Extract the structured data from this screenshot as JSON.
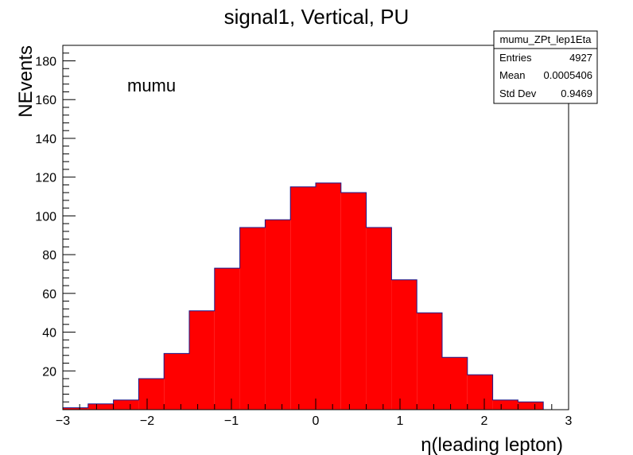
{
  "chart_data": {
    "type": "bar",
    "title": "signal1, Vertical, PU",
    "xlabel": "η(leading lepton)",
    "ylabel": "NEvents",
    "annotation": "mumu",
    "xlim": [
      -3,
      3
    ],
    "ylim": [
      0,
      188
    ],
    "xticks": [
      -3,
      -2,
      -1,
      0,
      1,
      2,
      3
    ],
    "xtick_labels": [
      "−3",
      "−2",
      "−1",
      "0",
      "1",
      "2",
      "3"
    ],
    "yticks": [
      20,
      40,
      60,
      80,
      100,
      120,
      140,
      160,
      180
    ],
    "ytick_labels": [
      "20",
      "40",
      "60",
      "80",
      "100",
      "120",
      "140",
      "160",
      "180"
    ],
    "bin_edges": [
      -3.0,
      -2.7,
      -2.4,
      -2.1,
      -1.8,
      -1.5,
      -1.2,
      -0.9,
      -0.6,
      -0.3,
      0.0,
      0.3,
      0.6,
      0.9,
      1.2,
      1.5,
      1.8,
      2.1,
      2.4,
      2.7,
      3.0
    ],
    "values": [
      1,
      3,
      5,
      16,
      29,
      51,
      73,
      94,
      98,
      115,
      117,
      112,
      94,
      67,
      50,
      27,
      18,
      5,
      4,
      0
    ],
    "fill_color": "#ff0000",
    "line_color": "#1a1a8c",
    "grid": false,
    "stats_box": {
      "name": "mumu_ZPt_lep1Eta",
      "rows": [
        {
          "label": "Entries",
          "value": "4927"
        },
        {
          "label": "Mean",
          "value": "0.0005406"
        },
        {
          "label": "Std Dev",
          "value": "0.9469"
        }
      ]
    }
  }
}
